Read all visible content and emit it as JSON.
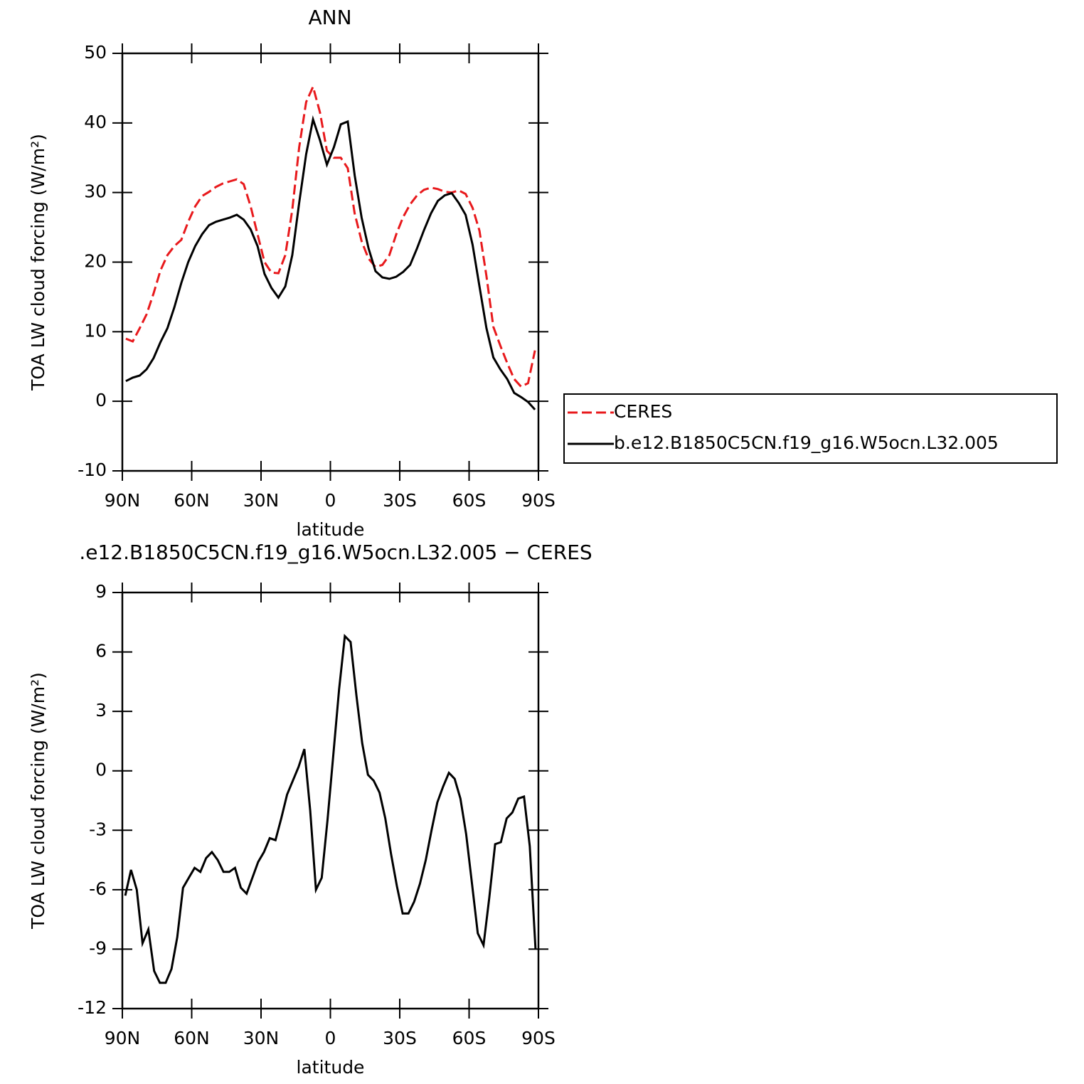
{
  "chart_data": [
    {
      "type": "line",
      "title": "ANN",
      "xlabel": "latitude",
      "ylabel": "TOA LW cloud forcing (W/m²)",
      "x": [
        88.5,
        85.5,
        82.5,
        79.5,
        76.5,
        73.5,
        70.5,
        67.5,
        64.5,
        61.5,
        58.5,
        55.5,
        52.5,
        49.5,
        46.5,
        43.5,
        40.5,
        37.5,
        34.5,
        31.5,
        28.5,
        25.5,
        22.5,
        19.5,
        16.5,
        13.5,
        10.5,
        7.5,
        4.5,
        1.5,
        -1.5,
        -4.5,
        -7.5,
        -10.5,
        -13.5,
        -16.5,
        -19.5,
        -22.5,
        -25.5,
        -28.5,
        -31.5,
        -34.5,
        -37.5,
        -40.5,
        -43.5,
        -46.5,
        -49.5,
        -52.5,
        -55.5,
        -58.5,
        -61.5,
        -64.5,
        -67.5,
        -70.5,
        -73.5,
        -76.5,
        -79.5,
        -82.5,
        -85.5,
        -88.5
      ],
      "series": [
        {
          "name": "CERES",
          "color": "#e8191c",
          "line_style": "dashed",
          "values": [
            9.0,
            8.6,
            10.5,
            12.5,
            15.5,
            18.8,
            21,
            22.3,
            23.2,
            25.8,
            28,
            29.5,
            30.1,
            30.8,
            31.3,
            31.6,
            31.9,
            31.2,
            28,
            24,
            20,
            18.5,
            18.4,
            21,
            27.5,
            36.5,
            43,
            45.2,
            41.5,
            36,
            35,
            35,
            33.5,
            27,
            23,
            20.5,
            19.3,
            19.6,
            21,
            24,
            26.5,
            28.3,
            29.6,
            30.4,
            30.7,
            30.5,
            30.1,
            30,
            30.3,
            29.8,
            27.8,
            24.5,
            18,
            10.7,
            8,
            5.5,
            3.2,
            2.1,
            2.6,
            7.3
          ]
        },
        {
          "name": "b.e12.B1850C5CN.f19_g16.W5ocn.L32.005",
          "color": "#000000",
          "line_style": "solid",
          "values": [
            2.9,
            3.4,
            3.7,
            4.6,
            6.2,
            8.5,
            10.5,
            13.5,
            17,
            20,
            22.3,
            24,
            25.3,
            25.8,
            26.1,
            26.4,
            26.8,
            26.1,
            24.7,
            22.3,
            18.3,
            16.3,
            14.9,
            16.5,
            21,
            28.5,
            35.5,
            40.5,
            37.5,
            34,
            36.5,
            39.8,
            40.2,
            32.5,
            26.4,
            22,
            18.7,
            17.8,
            17.6,
            17.9,
            18.6,
            19.6,
            22,
            24.6,
            27,
            28.8,
            29.6,
            29.9,
            28.5,
            26.8,
            22.5,
            16.5,
            10.5,
            6.3,
            4.6,
            3.2,
            1.2,
            0.6,
            -0.1,
            -1.2
          ]
        }
      ],
      "xlim": [
        90,
        -90
      ],
      "xticks": [
        {
          "value": 90,
          "label": "90N"
        },
        {
          "value": 60,
          "label": "60N"
        },
        {
          "value": 30,
          "label": "30N"
        },
        0,
        {
          "value": -30,
          "label": "30S"
        },
        {
          "value": -60,
          "label": "60S"
        },
        {
          "value": -90,
          "label": "90S"
        }
      ],
      "ylim": [
        -10,
        50
      ],
      "yticks": [
        -10,
        0,
        10,
        20,
        30,
        40,
        50
      ],
      "legend": "right"
    },
    {
      "type": "line",
      "title": ".e12.B1850C5CN.f19_g16.W5ocn.L32.005 − CERES",
      "xlabel": "latitude",
      "ylabel": "TOA LW cloud forcing (W/m²)",
      "x": [
        88.75,
        86.25,
        83.75,
        81.25,
        78.75,
        76.25,
        73.75,
        71.25,
        68.75,
        66.25,
        63.75,
        61.25,
        58.75,
        56.25,
        53.75,
        51.25,
        48.75,
        46.25,
        43.75,
        41.25,
        38.75,
        36.25,
        33.75,
        31.25,
        28.75,
        26.25,
        23.75,
        21.25,
        18.75,
        16.25,
        13.75,
        11.25,
        8.75,
        6.25,
        3.75,
        1.25,
        -1.25,
        -3.75,
        -6.25,
        -8.75,
        -11.25,
        -13.75,
        -16.25,
        -18.75,
        -21.25,
        -23.75,
        -26.25,
        -28.75,
        -31.25,
        -33.75,
        -36.25,
        -38.75,
        -41.25,
        -43.75,
        -46.25,
        -48.75,
        -51.25,
        -53.75,
        -56.25,
        -58.75,
        -61.25,
        -63.75,
        -66.25,
        -68.75,
        -71.25,
        -73.75,
        -76.25,
        -78.75,
        -81.25,
        -83.75,
        -86.25,
        -88.75
      ],
      "color": "#000000",
      "values": [
        -6.3,
        -5,
        -6,
        -8.7,
        -8,
        -10.1,
        -10.7,
        -10.7,
        -10,
        -8.4,
        -5.9,
        -5.4,
        -4.9,
        -5.1,
        -4.4,
        -4.1,
        -4.5,
        -5.1,
        -5.1,
        -4.9,
        -5.9,
        -6.2,
        -5.4,
        -4.6,
        -4.1,
        -3.4,
        -3.5,
        -2.4,
        -1.2,
        -0.5,
        0.2,
        1.1,
        -2,
        -6,
        -5.4,
        -2.5,
        0.8,
        4.1,
        6.8,
        6.5,
        3.8,
        1.4,
        -0.2,
        -0.5,
        -1.1,
        -2.4,
        -4.2,
        -5.8,
        -7.2,
        -7.2,
        -6.6,
        -5.7,
        -4.5,
        -3,
        -1.6,
        -0.8,
        -0.1,
        -0.4,
        -1.4,
        -3.2,
        -5.7,
        -8.2,
        -8.8,
        -6.4,
        -3.7,
        -3.6,
        -2.4,
        -2.1,
        -1.4,
        -1.3,
        -3.8,
        -9
      ],
      "xlim": [
        90,
        -90
      ],
      "xticks": [
        {
          "value": 90,
          "label": "90N"
        },
        {
          "value": 60,
          "label": "60N"
        },
        {
          "value": 30,
          "label": "30N"
        },
        0,
        {
          "value": -30,
          "label": "30S"
        },
        {
          "value": -60,
          "label": "60S"
        },
        {
          "value": -90,
          "label": "90S"
        }
      ],
      "ylim": [
        -12,
        9
      ],
      "yticks": [
        -12,
        -9,
        -6,
        -3,
        0,
        3,
        6,
        9
      ]
    }
  ]
}
